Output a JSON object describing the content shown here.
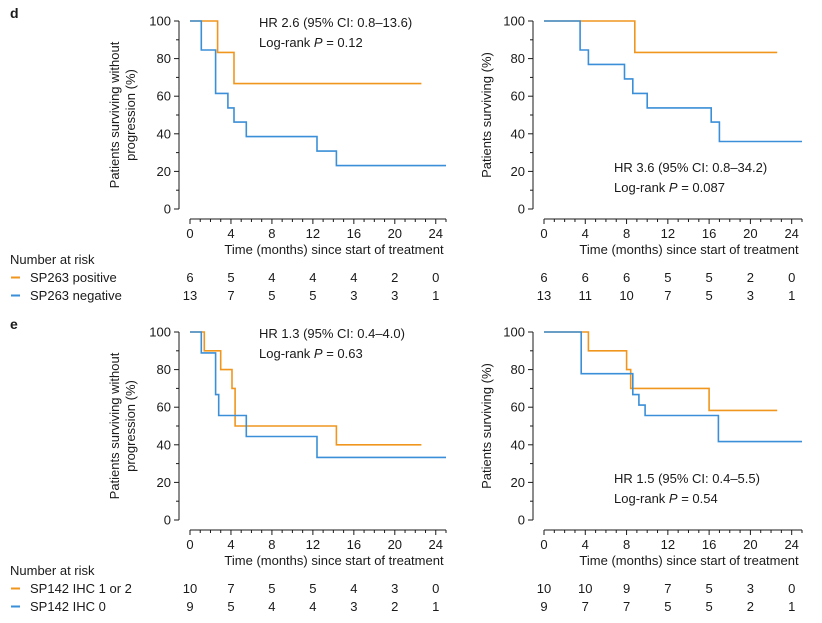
{
  "panels": [
    {
      "letter": "d",
      "risk_header": "Number at risk",
      "groups": [
        {
          "name": "SP263 positive",
          "color": "#f0961e"
        },
        {
          "name": "SP263 negative",
          "color": "#3a8fd8"
        }
      ],
      "risk_times": [
        "0",
        "4",
        "8",
        "12",
        "16",
        "20",
        "24"
      ]
    },
    {
      "letter": "e",
      "risk_header": "Number at risk",
      "groups": [
        {
          "name": "SP142 IHC 1 or 2",
          "color": "#f0961e"
        },
        {
          "name": "SP142 IHC 0",
          "color": "#3a8fd8"
        }
      ],
      "risk_times": [
        "0",
        "4",
        "8",
        "12",
        "16",
        "20",
        "24"
      ]
    }
  ],
  "chart_data": [
    {
      "id": "d-pfs",
      "panel": "d",
      "type": "line",
      "step": true,
      "ylabel": "Patients surviving without progression (%)",
      "ylabel_lines": [
        "Patients surviving without",
        "progression (%)"
      ],
      "xlabel": "Time (months) since start of treatment",
      "xlim": [
        0,
        25
      ],
      "ylim": [
        0,
        100
      ],
      "xticks": [
        "0",
        "4",
        "8",
        "12",
        "16",
        "20",
        "24"
      ],
      "yticks": [
        "0",
        "20",
        "40",
        "60",
        "80",
        "100"
      ],
      "annotation": {
        "hr": "HR 2.6 (95% CI: 0.8–13.6)",
        "p_prefix": "Log-rank ",
        "p_label": "P",
        "p_value": " = 0.12"
      },
      "annotation_position": "top",
      "series": [
        {
          "color": "#f0961e",
          "x": [
            0,
            2.7,
            4.3,
            22.6
          ],
          "y": [
            100,
            83.3,
            66.7,
            66.7
          ]
        },
        {
          "color": "#3a8fd8",
          "x": [
            0,
            1.1,
            2.5,
            3.7,
            4.3,
            5.5,
            12.4,
            14.3,
            25
          ],
          "y": [
            100,
            84.6,
            61.5,
            53.8,
            46.2,
            38.5,
            30.8,
            23.1,
            23.1
          ]
        }
      ],
      "risk": [
        [
          "6",
          "5",
          "4",
          "4",
          "4",
          "2",
          "0"
        ],
        [
          "13",
          "7",
          "5",
          "5",
          "3",
          "3",
          "1"
        ]
      ]
    },
    {
      "id": "d-os",
      "panel": "d",
      "type": "line",
      "step": true,
      "ylabel": "Patients surviving (%)",
      "ylabel_lines": [
        "Patients surviving (%)"
      ],
      "xlabel": "Time (months) since start of treatment",
      "xlim": [
        0,
        25
      ],
      "ylim": [
        0,
        100
      ],
      "xticks": [
        "0",
        "4",
        "8",
        "12",
        "16",
        "20",
        "24"
      ],
      "yticks": [
        "0",
        "20",
        "40",
        "60",
        "80",
        "100"
      ],
      "annotation": {
        "hr": "HR 3.6 (95% CI: 0.8–34.2)",
        "p_prefix": "Log-rank ",
        "p_label": "P",
        "p_value": " = 0.087"
      },
      "annotation_position": "bottom",
      "series": [
        {
          "color": "#f0961e",
          "x": [
            0,
            8.8,
            22.6
          ],
          "y": [
            100,
            83.3,
            83.3
          ]
        },
        {
          "color": "#3a8fd8",
          "x": [
            0,
            3.5,
            4.3,
            7.8,
            8.6,
            10.0,
            16.2,
            17.0,
            25
          ],
          "y": [
            100,
            84.6,
            76.9,
            69.2,
            61.5,
            53.8,
            46.2,
            35.9,
            35.9
          ]
        }
      ],
      "risk": [
        [
          "6",
          "6",
          "6",
          "5",
          "5",
          "2",
          "0"
        ],
        [
          "13",
          "11",
          "10",
          "7",
          "5",
          "3",
          "1"
        ]
      ]
    },
    {
      "id": "e-pfs",
      "panel": "e",
      "type": "line",
      "step": true,
      "ylabel": "Patients surviving without progression (%)",
      "ylabel_lines": [
        "Patients surviving without",
        "progression (%)"
      ],
      "xlabel": "Time (months) since start of treatment",
      "xlim": [
        0,
        25
      ],
      "ylim": [
        0,
        100
      ],
      "xticks": [
        "0",
        "4",
        "8",
        "12",
        "16",
        "20",
        "24"
      ],
      "yticks": [
        "0",
        "20",
        "40",
        "60",
        "80",
        "100"
      ],
      "annotation": {
        "hr": "HR 1.3 (95% CI: 0.4–4.0)",
        "p_prefix": "Log-rank ",
        "p_label": "P",
        "p_value": " = 0.63"
      },
      "annotation_position": "top",
      "series": [
        {
          "color": "#f0961e",
          "x": [
            0,
            1.4,
            3.0,
            4.1,
            4.4,
            14.3,
            22.6
          ],
          "y": [
            100,
            90,
            80,
            70,
            50,
            40,
            40
          ]
        },
        {
          "color": "#3a8fd8",
          "x": [
            0,
            1.1,
            2.5,
            2.8,
            5.5,
            12.4,
            25
          ],
          "y": [
            100,
            88.9,
            66.7,
            55.6,
            44.4,
            33.3,
            33.3
          ]
        }
      ],
      "risk": [
        [
          "10",
          "7",
          "5",
          "5",
          "4",
          "3",
          "0"
        ],
        [
          "9",
          "5",
          "4",
          "4",
          "3",
          "2",
          "1"
        ]
      ]
    },
    {
      "id": "e-os",
      "panel": "e",
      "type": "line",
      "step": true,
      "ylabel": "Patients surviving (%)",
      "ylabel_lines": [
        "Patients surviving (%)"
      ],
      "xlabel": "Time (months) since start of treatment",
      "xlim": [
        0,
        25
      ],
      "ylim": [
        0,
        100
      ],
      "xticks": [
        "0",
        "4",
        "8",
        "12",
        "16",
        "20",
        "24"
      ],
      "yticks": [
        "0",
        "20",
        "40",
        "60",
        "80",
        "100"
      ],
      "annotation": {
        "hr": "HR 1.5 (95% CI: 0.4–5.5)",
        "p_prefix": "Log-rank ",
        "p_label": "P",
        "p_value": " = 0.54"
      },
      "annotation_position": "bottom",
      "series": [
        {
          "color": "#f0961e",
          "x": [
            0,
            4.3,
            8.0,
            8.4,
            16.0,
            22.6
          ],
          "y": [
            100,
            90,
            80,
            70,
            58.3,
            58.3
          ]
        },
        {
          "color": "#3a8fd8",
          "x": [
            0,
            3.6,
            8.6,
            9.2,
            9.8,
            16.9,
            25
          ],
          "y": [
            100,
            77.8,
            66.7,
            61.1,
            55.6,
            41.7,
            41.7
          ]
        }
      ],
      "risk": [
        [
          "10",
          "10",
          "9",
          "7",
          "5",
          "3",
          "0"
        ],
        [
          "9",
          "7",
          "7",
          "5",
          "5",
          "2",
          "1"
        ]
      ]
    }
  ]
}
